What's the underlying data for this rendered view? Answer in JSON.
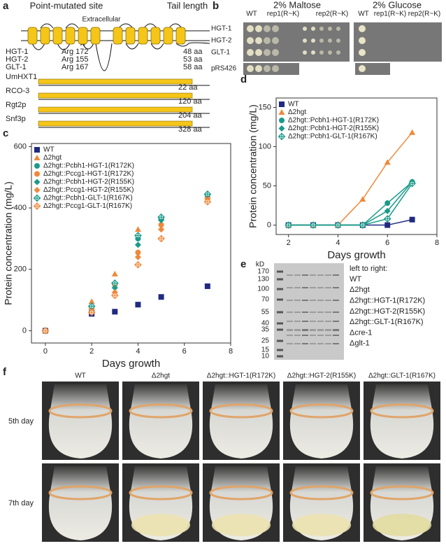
{
  "panel_a": {
    "label": "a",
    "headers": [
      "Point-mutated site",
      "Tail length"
    ],
    "extracellular": "Extracellular",
    "mutations": [
      {
        "name": "HGT-1",
        "site": "Arg 172",
        "tail": "48 aa"
      },
      {
        "name": "HGT-2",
        "site": "Arg 155",
        "tail": "53 aa"
      },
      {
        "name": "GLT-1",
        "site": "Arg 167",
        "tail": "58 aa"
      }
    ],
    "tails": [
      {
        "name": "UmHXT1",
        "tail": "22 aa"
      },
      {
        "name": "RCO-3",
        "tail": "120 aa"
      },
      {
        "name": "Rgt2p",
        "tail": "204 aa"
      },
      {
        "name": "Snf3p",
        "tail": "328 aa"
      }
    ]
  },
  "panel_b": {
    "label": "b",
    "conditions": [
      "2% Maltose",
      "2% Glucose"
    ],
    "columns": [
      "WT",
      "rep1(R~K)",
      "rep2(R~K)"
    ],
    "rows": [
      "HGT-1",
      "HGT-2",
      "GLT-1",
      "pRS426"
    ]
  },
  "chart_data": [
    {
      "type": "scatter",
      "label": "c",
      "x_label": "Days growth",
      "y_label": "Protein concentration (mg/L)",
      "x": [
        0,
        2,
        3,
        4,
        5,
        7
      ],
      "xlim": [
        -0.6,
        8
      ],
      "xticks": [
        0,
        2,
        4,
        6,
        8
      ],
      "ylim": [
        -40,
        610
      ],
      "yticks": [
        0,
        200,
        400,
        600
      ],
      "legend": "upper left",
      "series": [
        {
          "name": "WT",
          "color": "#1f2a80",
          "marker": "square",
          "values": [
            0,
            55,
            62,
            85,
            110,
            145
          ]
        },
        {
          "name": "Δ2hgt",
          "color": "#f0883a",
          "marker": "triangle",
          "values": [
            0,
            95,
            185,
            330,
            370,
            440
          ]
        },
        {
          "name": "Δ2hgt::Pcbh1-HGT-1(R172K)",
          "color": "#1a9a8a",
          "marker": "circle",
          "values": [
            0,
            70,
            150,
            300,
            365,
            440
          ]
        },
        {
          "name": "Δ2hgt::Pccg1-HGT-1(R172K)",
          "color": "#f0883a",
          "marker": "circle",
          "values": [
            0,
            75,
            150,
            255,
            345,
            430
          ]
        },
        {
          "name": "Δ2hgt::Pcbh1-HGT-2(R155K)",
          "color": "#1a9a8a",
          "marker": "diamond",
          "values": [
            0,
            65,
            140,
            280,
            360,
            445
          ]
        },
        {
          "name": "Δ2hgt::Pccg1-HGT-2(R155K)",
          "color": "#f0883a",
          "marker": "diamond",
          "values": [
            0,
            70,
            125,
            240,
            330,
            420
          ]
        },
        {
          "name": "Δ2hgt::Pcbh1-GLT-1(R167K)",
          "color": "#1a9a8a",
          "marker": "diamond-open",
          "values": [
            0,
            80,
            155,
            310,
            370,
            445
          ]
        },
        {
          "name": "Δ2hgt::Pccg1-GLT-1(R167K)",
          "color": "#f0883a",
          "marker": "diamond-open",
          "values": [
            0,
            60,
            115,
            215,
            300,
            420
          ]
        }
      ]
    },
    {
      "type": "line",
      "label": "d",
      "x_label": "Days growth",
      "y_label": "Protein concentration (mg/L)",
      "x": [
        2,
        3,
        4,
        5,
        6,
        7
      ],
      "xlim": [
        1.5,
        8
      ],
      "xticks": [
        2,
        4,
        6,
        8
      ],
      "ylim": [
        -12,
        162
      ],
      "yticks": [
        0,
        50,
        100,
        150
      ],
      "legend": "upper left",
      "series": [
        {
          "name": "WT",
          "color": "#1f2a80",
          "marker": "square",
          "values": [
            0,
            0,
            0,
            0,
            0,
            7
          ]
        },
        {
          "name": "Δ2hgt",
          "color": "#f0883a",
          "marker": "triangle",
          "values": [
            0,
            0,
            0,
            33,
            80,
            118
          ]
        },
        {
          "name": "Δ2hgt::Pcbh1-HGT-1(R172K)",
          "color": "#1a9a8a",
          "marker": "circle",
          "values": [
            0,
            0,
            0,
            0,
            28,
            55
          ]
        },
        {
          "name": "Δ2hgt::Pcbh1-HGT-2(R155K)",
          "color": "#1a9a8a",
          "marker": "diamond",
          "values": [
            0,
            0,
            0,
            0,
            18,
            55
          ]
        },
        {
          "name": "Δ2hgt::Pcbh1-GLT-1(R167K)",
          "color": "#1a9a8a",
          "marker": "diamond-open",
          "values": [
            0,
            0,
            0,
            0,
            8,
            53
          ]
        }
      ]
    }
  ],
  "panel_e": {
    "label": "e",
    "unit": "kD",
    "ladder": [
      170,
      130,
      100,
      70,
      55,
      40,
      35,
      25,
      15,
      10
    ],
    "caption": "left to right:",
    "lanes": [
      "WT",
      "Δ2hgt",
      "Δ2hgt::HGT-1(R172K)",
      "Δ2hgt::HGT-2(R155K)",
      "Δ2hgt::GLT-1(R167K)",
      "Δcre-1",
      "Δglt-1"
    ]
  },
  "panel_f": {
    "label": "f",
    "columns": [
      "WT",
      "Δ2hgt",
      "Δ2hgt::HGT-1(R172K)",
      "Δ2hgt::HGT-2(R155K)",
      "Δ2hgt::GLT-1(R167K)"
    ],
    "rows": [
      "5th day",
      "7th day"
    ]
  }
}
